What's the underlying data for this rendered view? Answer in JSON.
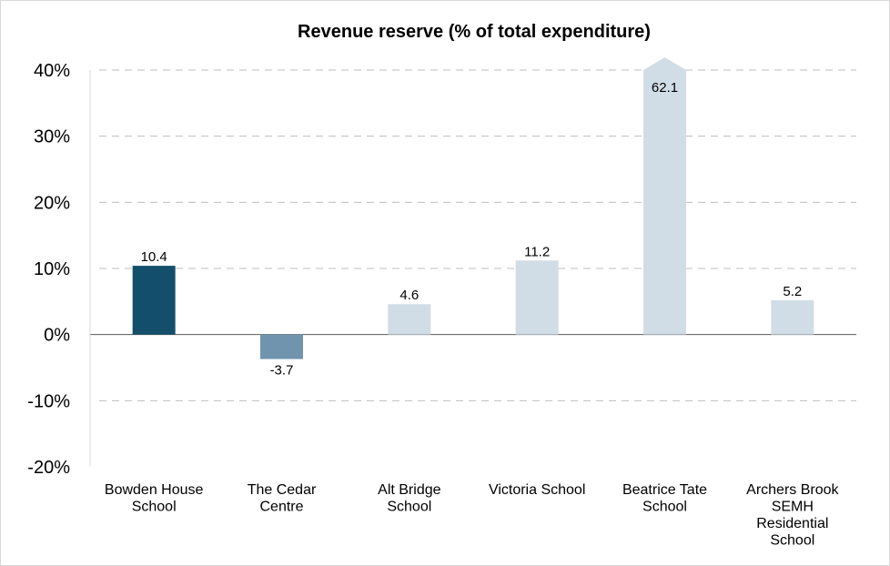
{
  "chart_data": {
    "type": "bar",
    "title": "Revenue reserve (% of total expenditure)",
    "xlabel": "",
    "ylabel": "",
    "ylim": [
      -20,
      40
    ],
    "yticks": [
      40,
      30,
      20,
      10,
      0,
      -10,
      -20
    ],
    "ytick_labels": [
      "40%",
      "30%",
      "20%",
      "10%",
      "0%",
      "-10%",
      "-20%"
    ],
    "grid": true,
    "legend": "none",
    "categories": [
      [
        "Bowden House",
        "School"
      ],
      [
        "The Cedar",
        "Centre"
      ],
      [
        "Alt Bridge",
        "School"
      ],
      [
        "Victoria School"
      ],
      [
        "Beatrice Tate",
        "School"
      ],
      [
        "Archers Brook",
        "SEMH",
        "Residential",
        "School"
      ]
    ],
    "values": [
      10.4,
      -3.7,
      4.6,
      11.2,
      62.1,
      5.2
    ],
    "data_labels": [
      "10.4",
      "-3.7",
      "4.6",
      "11.2",
      "62.1",
      "5.2"
    ],
    "truncated": [
      false,
      false,
      false,
      false,
      true,
      false
    ],
    "colors": [
      "#134f6b",
      "#7094ad",
      "#d1dde6",
      "#d1dde6",
      "#d1dde6",
      "#d1dde6"
    ]
  }
}
